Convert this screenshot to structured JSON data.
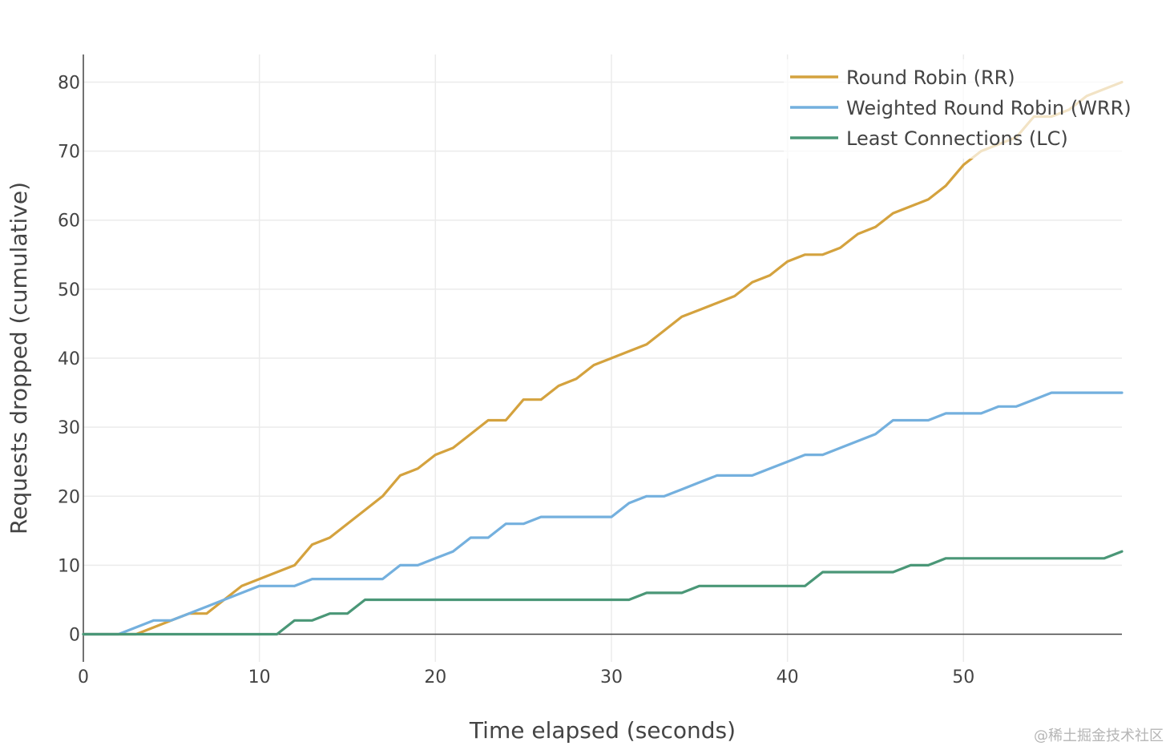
{
  "chart_data": {
    "type": "line",
    "title": "",
    "xlabel": "Time elapsed (seconds)",
    "ylabel": "Requests dropped (cumulative)",
    "xlim": [
      0,
      59
    ],
    "ylim": [
      -4,
      84
    ],
    "xticks": [
      0,
      10,
      20,
      30,
      40,
      50
    ],
    "yticks": [
      0,
      10,
      20,
      30,
      40,
      50,
      60,
      70,
      80
    ],
    "grid": true,
    "legend_position": "top-right",
    "x": [
      0,
      1,
      2,
      3,
      4,
      5,
      6,
      7,
      8,
      9,
      10,
      11,
      12,
      13,
      14,
      15,
      16,
      17,
      18,
      19,
      20,
      21,
      22,
      23,
      24,
      25,
      26,
      27,
      28,
      29,
      30,
      31,
      32,
      33,
      34,
      35,
      36,
      37,
      38,
      39,
      40,
      41,
      42,
      43,
      44,
      45,
      46,
      47,
      48,
      49,
      50,
      51,
      52,
      53,
      54,
      55,
      56,
      57,
      58,
      59
    ],
    "series": [
      {
        "name": "Round Robin (RR)",
        "color": "#d4a23e",
        "values": [
          0,
          0,
          0,
          0,
          1,
          2,
          3,
          3,
          5,
          7,
          8,
          9,
          10,
          13,
          14,
          16,
          18,
          20,
          23,
          24,
          26,
          27,
          29,
          31,
          31,
          34,
          34,
          36,
          37,
          39,
          40,
          41,
          42,
          44,
          46,
          47,
          48,
          49,
          51,
          52,
          54,
          55,
          55,
          56,
          58,
          59,
          61,
          62,
          63,
          65,
          68,
          70,
          71,
          72,
          75,
          75,
          76,
          78,
          79,
          80
        ]
      },
      {
        "name": "Weighted Round Robin (WRR)",
        "color": "#74b0de",
        "values": [
          0,
          0,
          0,
          1,
          2,
          2,
          3,
          4,
          5,
          6,
          7,
          7,
          7,
          8,
          8,
          8,
          8,
          8,
          10,
          10,
          11,
          12,
          14,
          14,
          16,
          16,
          17,
          17,
          17,
          17,
          17,
          19,
          20,
          20,
          21,
          22,
          23,
          23,
          23,
          24,
          25,
          26,
          26,
          27,
          28,
          29,
          31,
          31,
          31,
          32,
          32,
          32,
          33,
          33,
          34,
          35,
          35,
          35,
          35,
          35
        ]
      },
      {
        "name": "Least Connections (LC)",
        "color": "#4a9777",
        "values": [
          0,
          0,
          0,
          0,
          0,
          0,
          0,
          0,
          0,
          0,
          0,
          0,
          2,
          2,
          3,
          3,
          5,
          5,
          5,
          5,
          5,
          5,
          5,
          5,
          5,
          5,
          5,
          5,
          5,
          5,
          5,
          5,
          6,
          6,
          6,
          7,
          7,
          7,
          7,
          7,
          7,
          7,
          9,
          9,
          9,
          9,
          9,
          10,
          10,
          11,
          11,
          11,
          11,
          11,
          11,
          11,
          11,
          11,
          11,
          12
        ]
      }
    ]
  },
  "watermark": "@稀土掘金技术社区"
}
